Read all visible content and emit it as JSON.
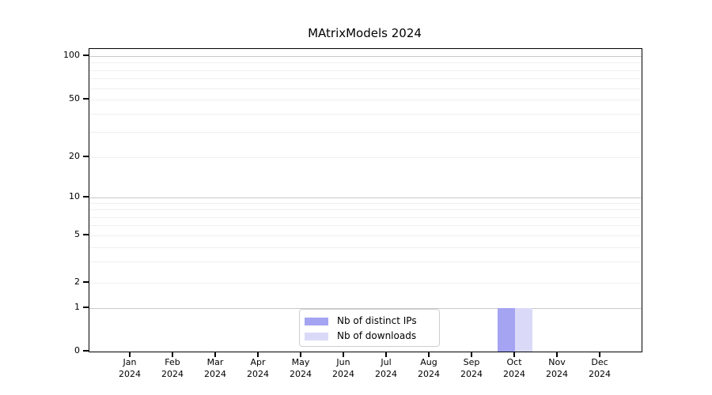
{
  "chart_data": {
    "type": "bar",
    "title": "MAtrixModels 2024",
    "categories": [
      "Jan 2024",
      "Feb 2024",
      "Mar 2024",
      "Apr 2024",
      "May 2024",
      "Jun 2024",
      "Jul 2024",
      "Aug 2024",
      "Sep 2024",
      "Oct 2024",
      "Nov 2024",
      "Dec 2024"
    ],
    "series": [
      {
        "name": "Nb of distinct IPs",
        "color": "#a4a4f2",
        "values": [
          0,
          0,
          0,
          0,
          0,
          0,
          0,
          0,
          0,
          1,
          0,
          0
        ]
      },
      {
        "name": "Nb of downloads",
        "color": "#dadaf8",
        "values": [
          0,
          0,
          0,
          0,
          0,
          0,
          0,
          0,
          0,
          1,
          0,
          0
        ]
      }
    ],
    "xlabel": "",
    "ylabel": "",
    "yscale": "symlog",
    "ylim": [
      0,
      110
    ],
    "yticks": [
      0,
      1,
      2,
      5,
      10,
      20,
      50,
      100
    ],
    "major_gridlines": [
      1,
      10,
      100
    ],
    "minor_gridlines": [
      2,
      3,
      4,
      5,
      6,
      7,
      8,
      9,
      20,
      30,
      40,
      50,
      60,
      70,
      80,
      90
    ],
    "grid": true,
    "legend_position": "lower center"
  }
}
